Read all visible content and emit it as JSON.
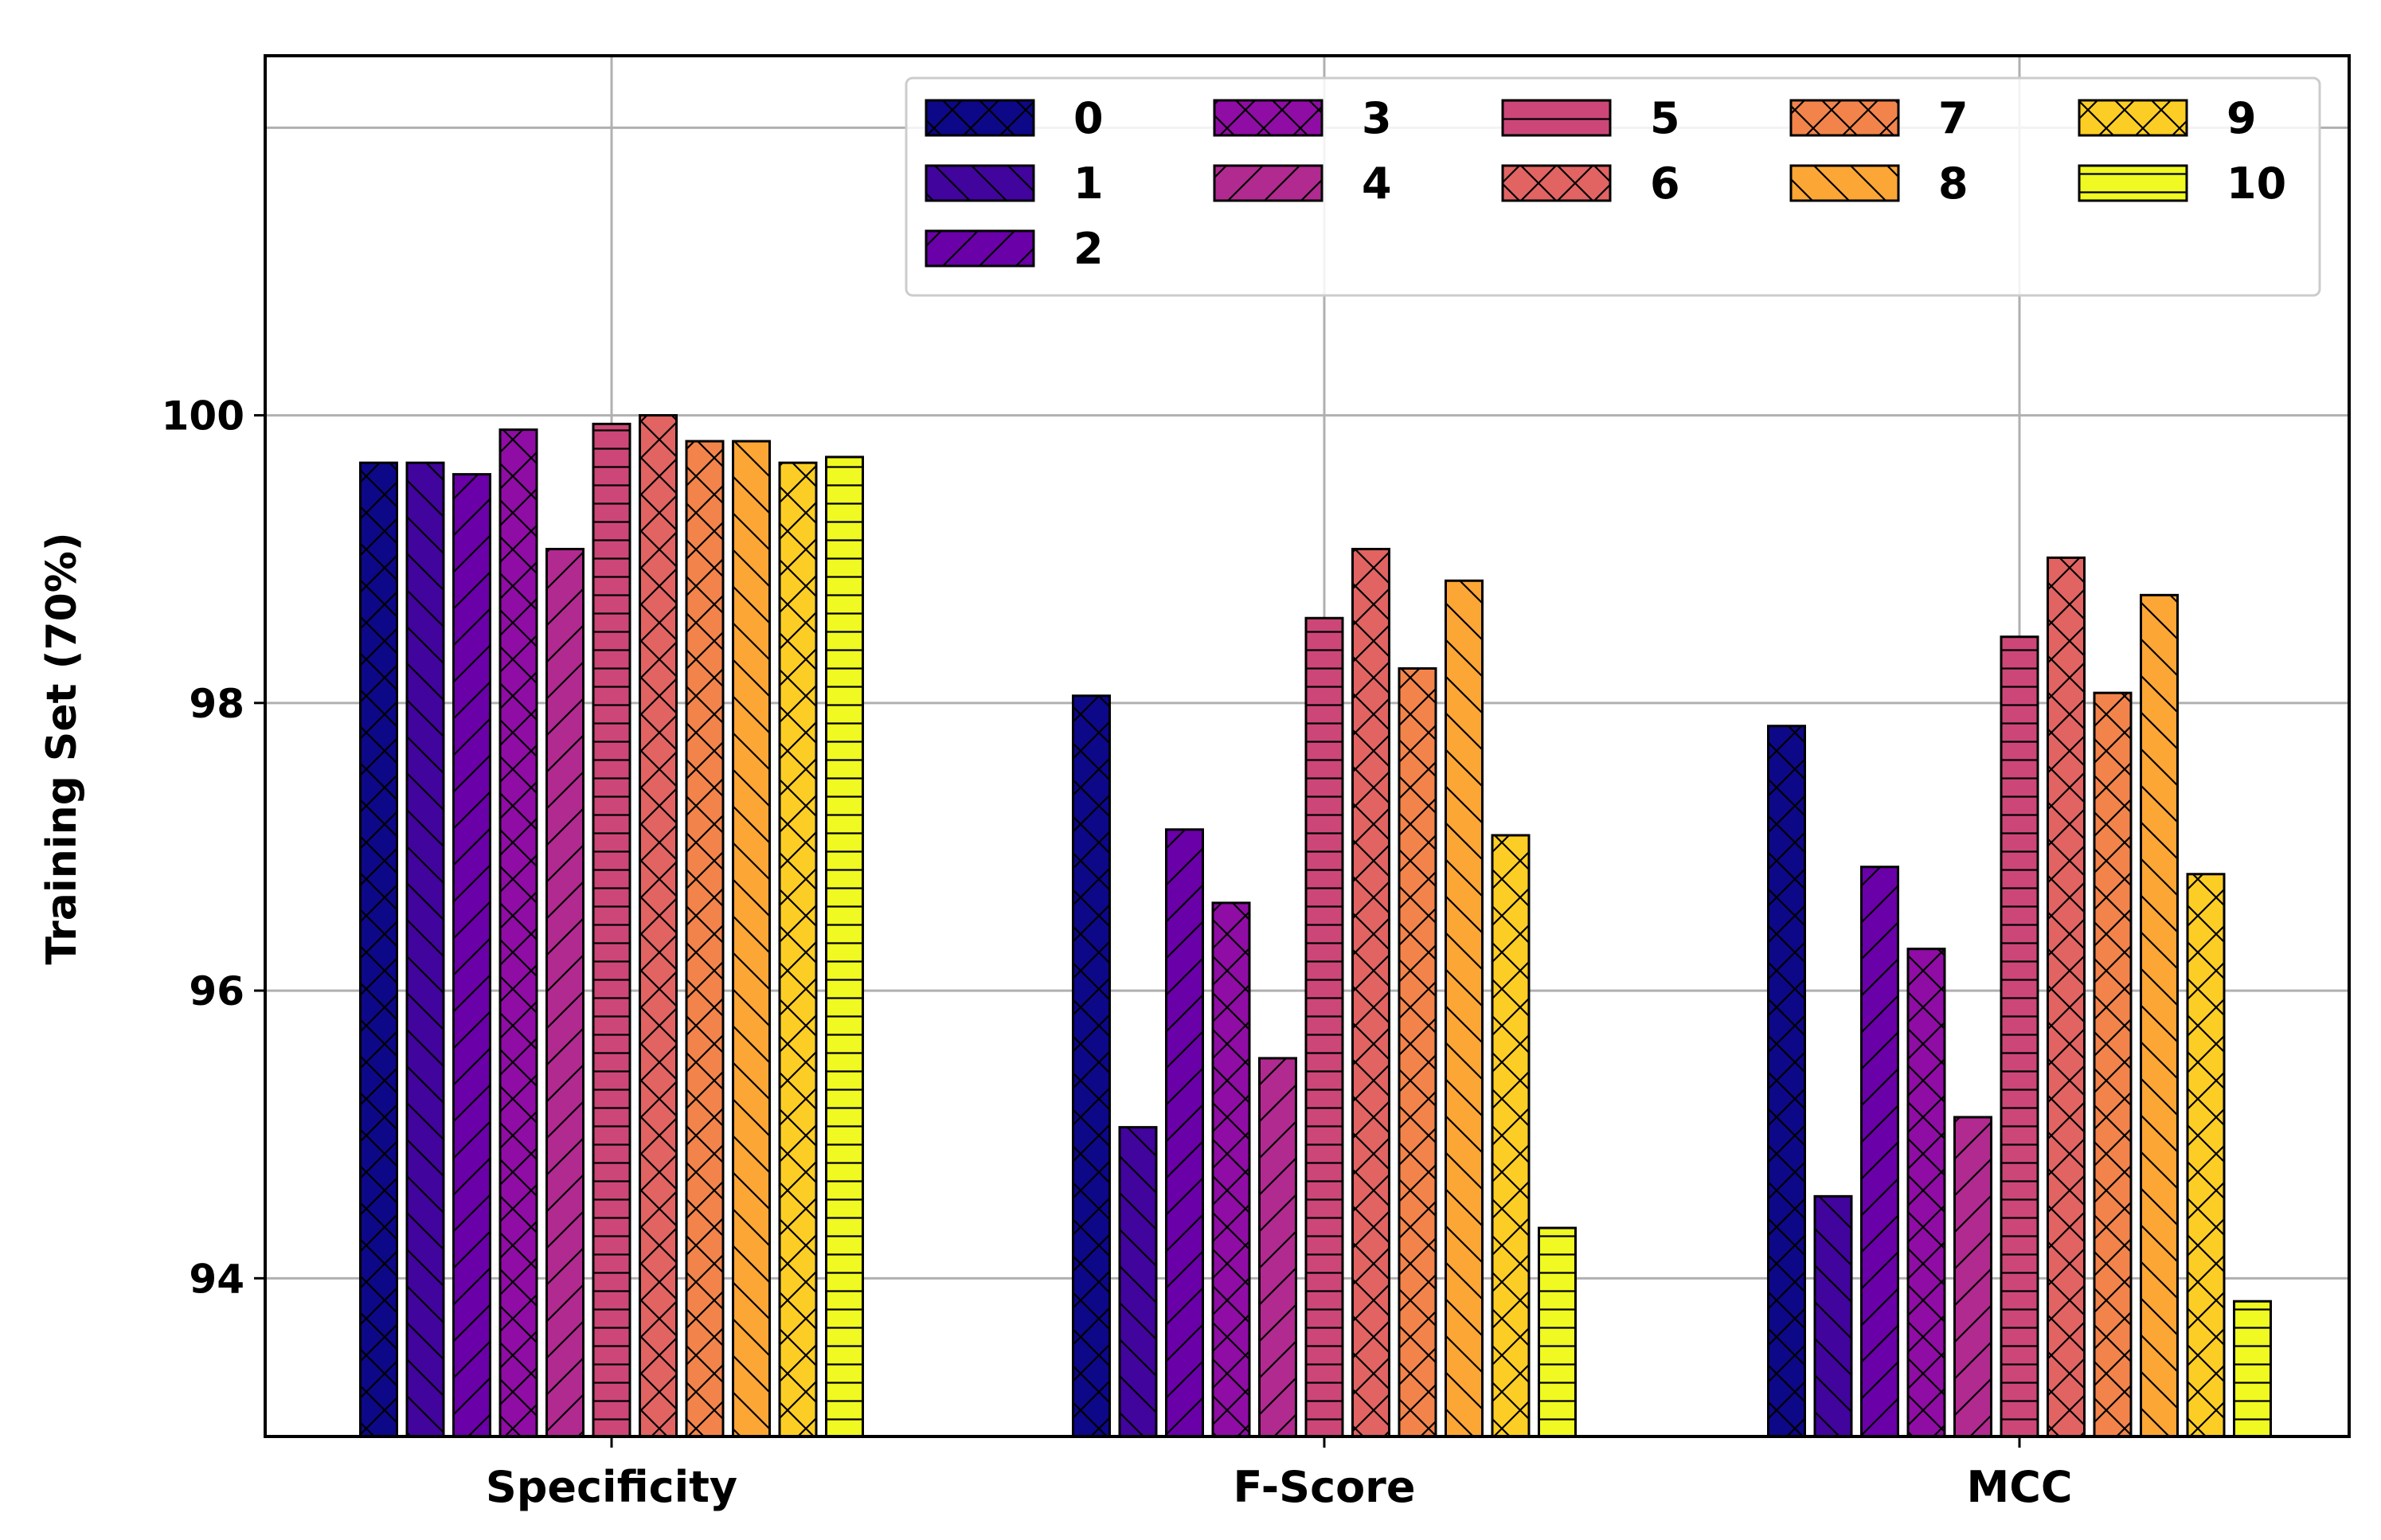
{
  "chart_data": {
    "type": "bar",
    "title": "",
    "xlabel": "",
    "ylabel": "Training Set (70%)",
    "ylim": [
      92.9,
      102.5
    ],
    "yticks": [
      94,
      96,
      98,
      100
    ],
    "grid": true,
    "legend_position": "top-right",
    "categories": [
      "Specificity",
      "F-Score",
      "MCC"
    ],
    "series": [
      {
        "name": "0",
        "color": "#0d0887",
        "hatch": "x",
        "values": [
          99.67,
          98.05,
          97.84
        ]
      },
      {
        "name": "1",
        "color": "#41049d",
        "hatch": "\\",
        "values": [
          99.67,
          95.05,
          94.57
        ]
      },
      {
        "name": "2",
        "color": "#6a00a8",
        "hatch": "/",
        "values": [
          99.59,
          97.12,
          96.86
        ]
      },
      {
        "name": "3",
        "color": "#8f0da4",
        "hatch": "x",
        "values": [
          99.9,
          96.61,
          96.29
        ]
      },
      {
        "name": "4",
        "color": "#b12a90",
        "hatch": "/",
        "values": [
          99.07,
          95.53,
          95.12
        ]
      },
      {
        "name": "5",
        "color": "#cc4778",
        "hatch": "-",
        "values": [
          99.94,
          98.59,
          98.46
        ]
      },
      {
        "name": "6",
        "color": "#e16462",
        "hatch": "x",
        "values": [
          100.0,
          99.07,
          99.01
        ]
      },
      {
        "name": "7",
        "color": "#f2844b",
        "hatch": "x",
        "values": [
          99.82,
          98.24,
          98.07
        ]
      },
      {
        "name": "8",
        "color": "#fca636",
        "hatch": "\\",
        "values": [
          99.82,
          98.85,
          98.75
        ]
      },
      {
        "name": "9",
        "color": "#fcce25",
        "hatch": "x",
        "values": [
          99.67,
          97.08,
          96.81
        ]
      },
      {
        "name": "10",
        "color": "#f0f921",
        "hatch": "-",
        "values": [
          99.71,
          94.35,
          93.84
        ]
      }
    ]
  }
}
